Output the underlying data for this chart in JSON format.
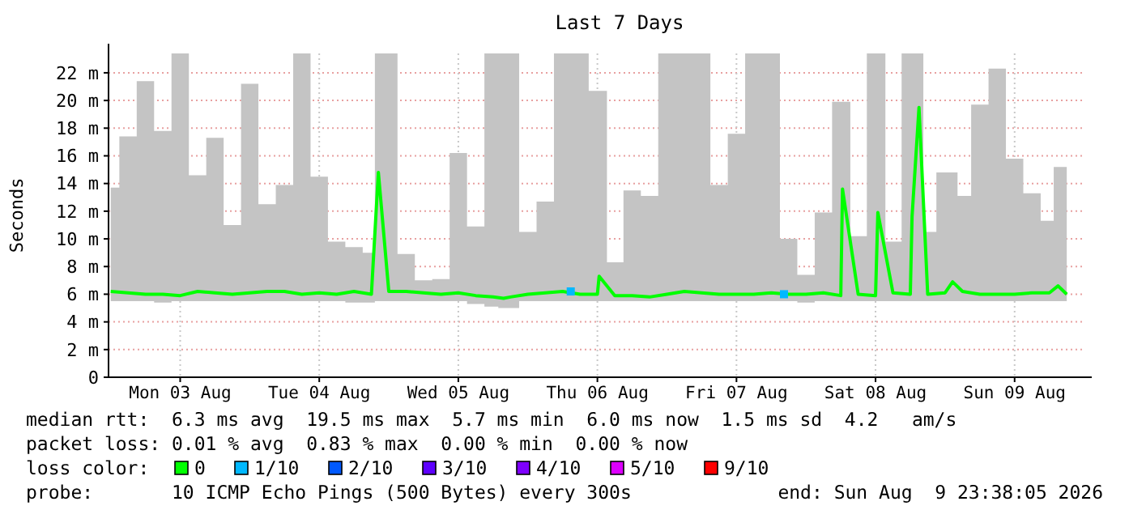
{
  "chart_data": {
    "type": "line",
    "title": "Last 7 Days",
    "ylabel": "Seconds",
    "legend_title": "loss color:",
    "legend": "bottom",
    "grid": true,
    "marker": "none",
    "xlim": [
      "2026-08-02T23:38",
      "2026-08-09T23:38"
    ],
    "xticks": [
      {
        "value": "2026-08-03T12:00",
        "label": "Mon 03 Aug"
      },
      {
        "value": "2026-08-04T12:00",
        "label": "Tue 04 Aug"
      },
      {
        "value": "2026-08-05T12:00",
        "label": "Wed 05 Aug"
      },
      {
        "value": "2026-08-06T12:00",
        "label": "Thu 06 Aug"
      },
      {
        "value": "2026-08-07T12:00",
        "label": "Fri 07 Aug"
      },
      {
        "value": "2026-08-08T12:00",
        "label": "Sat 08 Aug"
      },
      {
        "value": "2026-08-09T12:00",
        "label": "Sun 09 Aug"
      }
    ],
    "ylim": [
      0,
      23.4
    ],
    "yticks": [
      0,
      {
        "value": 2,
        "label": "2 m"
      },
      {
        "value": 4,
        "label": "4 m"
      },
      {
        "value": 6,
        "label": "6 m"
      },
      {
        "value": 8,
        "label": "8 m"
      },
      {
        "value": 10,
        "label": "10 m"
      },
      {
        "value": 12,
        "label": "12 m"
      },
      {
        "value": 14,
        "label": "14 m"
      },
      {
        "value": 16,
        "label": "16 m"
      },
      {
        "value": 18,
        "label": "18 m"
      },
      {
        "value": 20,
        "label": "20 m"
      },
      {
        "value": 22,
        "label": "22 m"
      }
    ],
    "x": [
      "2026-08-03T00:00",
      "2026-08-03T03:00",
      "2026-08-03T06:00",
      "2026-08-03T09:00",
      "2026-08-03T12:00",
      "2026-08-03T15:00",
      "2026-08-03T18:00",
      "2026-08-03T21:00",
      "2026-08-04T00:00",
      "2026-08-04T03:00",
      "2026-08-04T06:00",
      "2026-08-04T09:00",
      "2026-08-04T12:00",
      "2026-08-04T15:00",
      "2026-08-04T18:00",
      "2026-08-04T21:00",
      "2026-08-04T22:12",
      "2026-08-05T00:00",
      "2026-08-05T03:00",
      "2026-08-05T06:00",
      "2026-08-05T09:00",
      "2026-08-05T12:00",
      "2026-08-05T15:00",
      "2026-08-05T18:00",
      "2026-08-05T19:48",
      "2026-08-05T21:00",
      "2026-08-06T00:00",
      "2026-08-06T03:00",
      "2026-08-06T06:00",
      "2026-08-06T09:00",
      "2026-08-06T12:00",
      "2026-08-06T12:18",
      "2026-08-06T15:00",
      "2026-08-06T18:00",
      "2026-08-06T21:00",
      "2026-08-07T00:00",
      "2026-08-07T03:00",
      "2026-08-07T06:00",
      "2026-08-07T09:00",
      "2026-08-07T12:00",
      "2026-08-07T15:00",
      "2026-08-07T18:00",
      "2026-08-07T21:00",
      "2026-08-08T00:00",
      "2026-08-08T03:00",
      "2026-08-08T06:00",
      "2026-08-08T06:18",
      "2026-08-08T09:00",
      "2026-08-08T12:00",
      "2026-08-08T12:24",
      "2026-08-08T15:00",
      "2026-08-08T18:00",
      "2026-08-08T18:18",
      "2026-08-08T19:30",
      "2026-08-08T21:00",
      "2026-08-09T00:00",
      "2026-08-09T01:18",
      "2026-08-09T03:00",
      "2026-08-09T06:00",
      "2026-08-09T09:00",
      "2026-08-09T12:00",
      "2026-08-09T15:00",
      "2026-08-09T18:00",
      "2026-08-09T19:30",
      "2026-08-09T21:00"
    ],
    "series": [
      {
        "name": "0",
        "color": "#00ff00",
        "values": [
          6.2,
          6.1,
          6.0,
          6.0,
          5.9,
          6.2,
          6.1,
          6.0,
          6.1,
          6.2,
          6.2,
          6.0,
          6.1,
          6.0,
          6.2,
          6.0,
          14.8,
          6.2,
          6.2,
          6.1,
          6.0,
          6.1,
          5.9,
          5.8,
          5.7,
          5.8,
          6.0,
          6.1,
          6.2,
          6.0,
          6.0,
          7.3,
          5.9,
          5.9,
          5.8,
          6.0,
          6.2,
          6.1,
          6.0,
          6.0,
          6.0,
          6.1,
          6.0,
          6.0,
          6.1,
          5.9,
          13.6,
          6.0,
          5.9,
          11.9,
          6.1,
          6.0,
          11.6,
          19.5,
          6.0,
          6.1,
          6.9,
          6.2,
          6.0,
          6.0,
          6.0,
          6.1,
          6.1,
          6.6,
          6.0
        ],
        "lower": [
          5.5,
          5.5,
          5.5,
          5.4,
          5.5,
          5.5,
          5.5,
          5.5,
          5.5,
          5.5,
          5.5,
          5.5,
          5.5,
          5.5,
          5.4,
          5.4,
          5.5,
          5.5,
          5.5,
          5.5,
          5.5,
          5.5,
          5.3,
          5.1,
          5.0,
          5.0,
          5.5,
          5.5,
          5.5,
          5.5,
          5.5,
          5.5,
          5.5,
          5.5,
          5.5,
          5.5,
          5.5,
          5.5,
          5.5,
          5.5,
          5.5,
          5.5,
          5.5,
          5.4,
          5.5,
          5.5,
          5.5,
          5.5,
          5.5,
          5.5,
          5.5,
          5.5,
          5.5,
          5.5,
          5.5,
          5.5,
          5.5,
          5.5,
          5.5,
          5.5,
          5.5,
          5.5,
          5.5,
          5.5,
          5.5
        ],
        "upper": [
          13.7,
          17.4,
          21.4,
          17.8,
          23.4,
          14.6,
          17.3,
          11.0,
          21.2,
          12.5,
          13.9,
          23.4,
          14.5,
          9.8,
          9.4,
          9.0,
          23.4,
          23.4,
          8.9,
          7.0,
          7.1,
          16.2,
          10.9,
          23.4,
          23.4,
          23.4,
          10.5,
          12.7,
          23.4,
          23.4,
          20.7,
          20.7,
          8.3,
          13.5,
          13.1,
          23.4,
          23.4,
          23.4,
          13.9,
          17.6,
          23.4,
          23.4,
          10.0,
          7.4,
          11.9,
          19.9,
          19.9,
          10.2,
          23.4,
          23.4,
          9.8,
          23.4,
          23.4,
          23.4,
          10.5,
          14.8,
          14.8,
          13.1,
          19.7,
          22.3,
          15.8,
          13.3,
          11.3,
          15.2,
          15.2
        ]
      },
      {
        "name": "1/10",
        "color": "#00b8ff",
        "type": "scatter",
        "marker": "square",
        "x": [
          "2026-08-06T07:24",
          "2026-08-07T20:12"
        ],
        "values": [
          6.2,
          6.0
        ]
      },
      {
        "name": "2/10",
        "color": "#0059ff",
        "type": "scatter",
        "values": [
          null,
          null,
          null,
          null,
          null,
          null,
          null,
          null,
          null,
          null,
          null,
          null,
          null,
          null,
          null,
          null,
          null,
          null,
          null,
          null,
          null,
          null,
          null,
          null,
          null,
          null,
          null,
          null,
          null,
          null,
          null,
          null,
          null,
          null,
          null,
          null,
          null,
          null,
          null,
          null,
          null,
          null,
          null,
          null,
          null,
          null,
          null,
          null,
          null,
          null,
          null,
          null,
          null,
          null,
          null,
          null,
          null,
          null,
          null,
          null,
          null,
          null,
          null,
          null,
          null
        ]
      },
      {
        "name": "3/10",
        "color": "#5e00ff",
        "type": "scatter",
        "values": [
          null,
          null,
          null,
          null,
          null,
          null,
          null,
          null,
          null,
          null,
          null,
          null,
          null,
          null,
          null,
          null,
          null,
          null,
          null,
          null,
          null,
          null,
          null,
          null,
          null,
          null,
          null,
          null,
          null,
          null,
          null,
          null,
          null,
          null,
          null,
          null,
          null,
          null,
          null,
          null,
          null,
          null,
          null,
          null,
          null,
          null,
          null,
          null,
          null,
          null,
          null,
          null,
          null,
          null,
          null,
          null,
          null,
          null,
          null,
          null,
          null,
          null,
          null,
          null,
          null
        ]
      },
      {
        "name": "4/10",
        "color": "#7e00ff",
        "type": "scatter",
        "values": [
          null,
          null,
          null,
          null,
          null,
          null,
          null,
          null,
          null,
          null,
          null,
          null,
          null,
          null,
          null,
          null,
          null,
          null,
          null,
          null,
          null,
          null,
          null,
          null,
          null,
          null,
          null,
          null,
          null,
          null,
          null,
          null,
          null,
          null,
          null,
          null,
          null,
          null,
          null,
          null,
          null,
          null,
          null,
          null,
          null,
          null,
          null,
          null,
          null,
          null,
          null,
          null,
          null,
          null,
          null,
          null,
          null,
          null,
          null,
          null,
          null,
          null,
          null,
          null,
          null
        ]
      },
      {
        "name": "5/10",
        "color": "#dd00ff",
        "type": "scatter",
        "values": [
          null,
          null,
          null,
          null,
          null,
          null,
          null,
          null,
          null,
          null,
          null,
          null,
          null,
          null,
          null,
          null,
          null,
          null,
          null,
          null,
          null,
          null,
          null,
          null,
          null,
          null,
          null,
          null,
          null,
          null,
          null,
          null,
          null,
          null,
          null,
          null,
          null,
          null,
          null,
          null,
          null,
          null,
          null,
          null,
          null,
          null,
          null,
          null,
          null,
          null,
          null,
          null,
          null,
          null,
          null,
          null,
          null,
          null,
          null,
          null,
          null,
          null,
          null,
          null,
          null
        ]
      },
      {
        "name": "9/10",
        "color": "#ff0000",
        "type": "scatter",
        "values": [
          null,
          null,
          null,
          null,
          null,
          null,
          null,
          null,
          null,
          null,
          null,
          null,
          null,
          null,
          null,
          null,
          null,
          null,
          null,
          null,
          null,
          null,
          null,
          null,
          null,
          null,
          null,
          null,
          null,
          null,
          null,
          null,
          null,
          null,
          null,
          null,
          null,
          null,
          null,
          null,
          null,
          null,
          null,
          null,
          null,
          null,
          null,
          null,
          null,
          null,
          null,
          null,
          null,
          null,
          null,
          null,
          null,
          null,
          null,
          null,
          null,
          null,
          null,
          null,
          null
        ]
      }
    ],
    "annotations": [
      "median rtt:  6.3 ms avg  19.5 ms max  5.7 ms min  6.0 ms now  1.5 ms sd  4.2   am/s",
      "packet loss: 0.01 % avg  0.83 % max  0.00 % min  0.00 % now",
      "probe:       10 ICMP Echo Pings (500 Bytes) every 300s",
      "end: Sun Aug  9 23:38:05 2026"
    ]
  }
}
